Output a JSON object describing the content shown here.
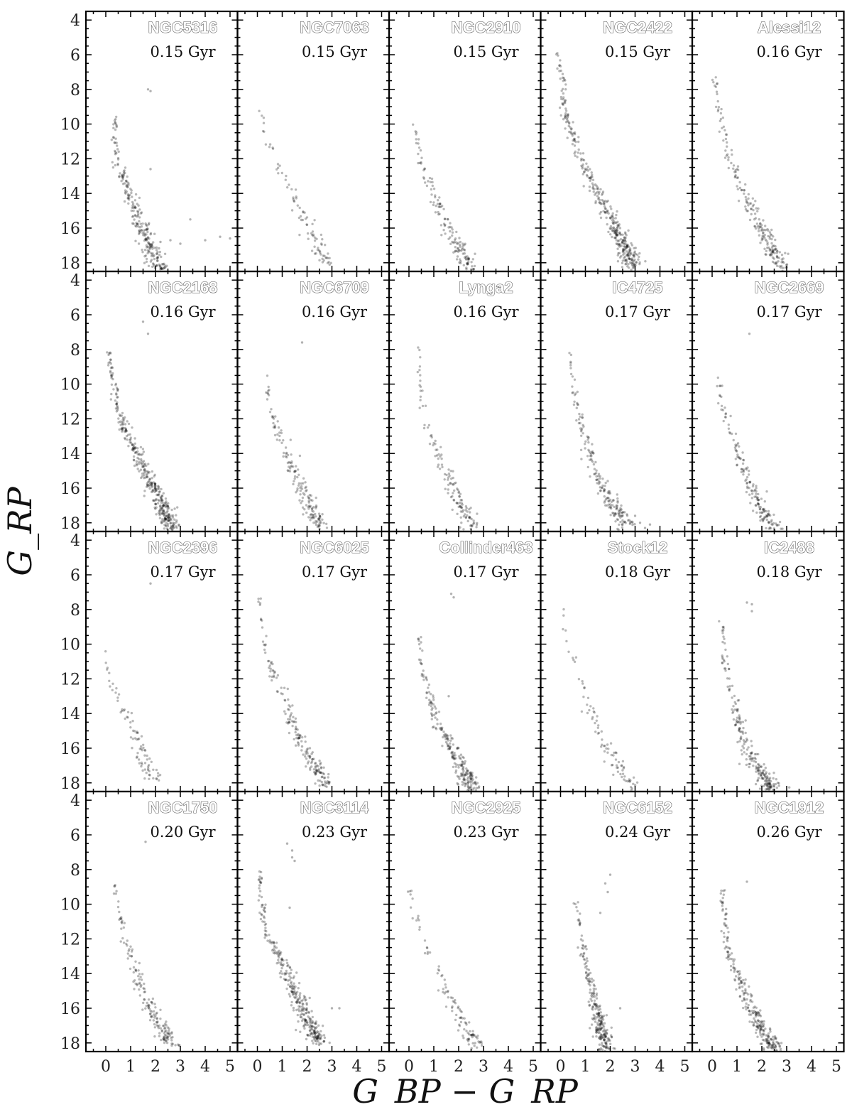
{
  "chart_data": {
    "type": "scatter",
    "layout": "small-multiples 4x5 color-magnitude diagrams",
    "xlabel": "G_BP − G_RP",
    "ylabel": "G_RP",
    "xlim": [
      -0.8,
      5.3
    ],
    "ylim": [
      18.5,
      3.5
    ],
    "y_inverted": true,
    "xticks": [
      0,
      1,
      2,
      3,
      4,
      5
    ],
    "yticks": [
      4,
      6,
      8,
      10,
      12,
      14,
      16,
      18
    ],
    "grid": false,
    "legend": "none",
    "point_color": "#000000",
    "panels": [
      {
        "name": "NGC5316",
        "age": "0.15 Gyr",
        "density": 1.1,
        "track": [
          [
            0.4,
            9.6
          ],
          [
            0.35,
            10.6
          ],
          [
            0.45,
            12.0
          ],
          [
            0.7,
            13.2
          ],
          [
            1.0,
            14.3
          ],
          [
            1.4,
            15.8
          ],
          [
            1.8,
            17.1
          ],
          [
            2.2,
            18.4
          ]
        ],
        "extra": [
          [
            1.7,
            8.0
          ],
          [
            1.8,
            8.1
          ],
          [
            1.8,
            12.6
          ],
          [
            2.6,
            16.7
          ],
          [
            3.0,
            16.9
          ],
          [
            3.4,
            15.5
          ],
          [
            4.0,
            16.7
          ],
          [
            4.6,
            16.5
          ],
          [
            5.0,
            16.6
          ],
          [
            2.2,
            16.8
          ]
        ]
      },
      {
        "name": "NGC7063",
        "age": "0.15 Gyr",
        "density": 0.45,
        "track": [
          [
            0.05,
            8.9
          ],
          [
            0.3,
            10.5
          ],
          [
            0.8,
            12.2
          ],
          [
            1.3,
            13.8
          ],
          [
            1.9,
            15.3
          ],
          [
            2.4,
            16.8
          ],
          [
            2.8,
            18.2
          ]
        ],
        "extra": []
      },
      {
        "name": "NGC2910",
        "age": "0.15 Gyr",
        "density": 0.75,
        "track": [
          [
            0.2,
            9.8
          ],
          [
            0.35,
            11.5
          ],
          [
            0.7,
            13.0
          ],
          [
            1.1,
            14.3
          ],
          [
            1.5,
            15.8
          ],
          [
            2.0,
            17.2
          ],
          [
            2.5,
            18.4
          ]
        ],
        "extra": []
      },
      {
        "name": "NGC2422",
        "age": "0.15 Gyr",
        "density": 1.4,
        "track": [
          [
            -0.15,
            5.8
          ],
          [
            0.1,
            7.5
          ],
          [
            0.1,
            8.9
          ],
          [
            0.4,
            10.3
          ],
          [
            0.9,
            12.3
          ],
          [
            1.5,
            14.2
          ],
          [
            2.2,
            15.9
          ],
          [
            2.6,
            17.0
          ],
          [
            2.9,
            18.2
          ]
        ],
        "extra": []
      },
      {
        "name": "Alessi12",
        "age": "0.16 Gyr",
        "density": 0.9,
        "track": [
          [
            0.05,
            7.1
          ],
          [
            0.25,
            8.6
          ],
          [
            0.45,
            10.4
          ],
          [
            0.8,
            12.3
          ],
          [
            1.3,
            14.2
          ],
          [
            1.9,
            15.8
          ],
          [
            2.4,
            17.1
          ],
          [
            2.8,
            18.3
          ]
        ],
        "extra": []
      },
      {
        "name": "NGC2168",
        "age": "0.16 Gyr",
        "density": 2.0,
        "track": [
          [
            0.1,
            8.0
          ],
          [
            0.25,
            9.6
          ],
          [
            0.5,
            11.6
          ],
          [
            1.0,
            13.3
          ],
          [
            1.6,
            15.0
          ],
          [
            2.2,
            16.8
          ],
          [
            2.7,
            18.3
          ]
        ],
        "extra": [
          [
            1.5,
            6.4
          ],
          [
            1.7,
            7.1
          ]
        ]
      },
      {
        "name": "NGC6709",
        "age": "0.16 Gyr",
        "density": 0.85,
        "track": [
          [
            0.4,
            9.3
          ],
          [
            0.45,
            11.0
          ],
          [
            0.8,
            12.6
          ],
          [
            1.2,
            14.1
          ],
          [
            1.6,
            15.5
          ],
          [
            2.1,
            17.0
          ],
          [
            2.5,
            18.3
          ]
        ],
        "extra": [
          [
            1.8,
            7.6
          ]
        ]
      },
      {
        "name": "Lynga2",
        "age": "0.16 Gyr",
        "density": 0.7,
        "track": [
          [
            0.4,
            7.4
          ],
          [
            0.4,
            9.6
          ],
          [
            0.6,
            12.0
          ],
          [
            1.1,
            13.8
          ],
          [
            1.6,
            15.5
          ],
          [
            2.1,
            17.0
          ],
          [
            2.6,
            18.3
          ]
        ],
        "extra": []
      },
      {
        "name": "IC4725",
        "age": "0.17 Gyr",
        "density": 1.0,
        "track": [
          [
            0.4,
            8.3
          ],
          [
            0.5,
            10.2
          ],
          [
            0.8,
            12.0
          ],
          [
            1.1,
            13.8
          ],
          [
            1.5,
            15.5
          ],
          [
            2.1,
            17.0
          ],
          [
            2.7,
            18.2
          ]
        ],
        "extra": [
          [
            3.2,
            18.0
          ],
          [
            3.4,
            18.3
          ],
          [
            3.0,
            17.6
          ],
          [
            3.6,
            18.1
          ]
        ]
      },
      {
        "name": "NGC2669",
        "age": "0.17 Gyr",
        "density": 0.85,
        "track": [
          [
            0.2,
            9.3
          ],
          [
            0.35,
            11.0
          ],
          [
            0.7,
            12.5
          ],
          [
            1.1,
            14.2
          ],
          [
            1.5,
            15.8
          ],
          [
            2.0,
            17.2
          ],
          [
            2.5,
            18.3
          ]
        ],
        "extra": [
          [
            1.5,
            7.1
          ]
        ]
      },
      {
        "name": "NGC2396",
        "age": "0.17 Gyr",
        "density": 0.55,
        "track": [
          [
            -0.05,
            10.2
          ],
          [
            0.2,
            12.2
          ],
          [
            0.7,
            13.5
          ],
          [
            1.1,
            15.0
          ],
          [
            1.5,
            16.5
          ],
          [
            2.0,
            17.8
          ]
        ],
        "extra": [
          [
            1.8,
            6.5
          ]
        ]
      },
      {
        "name": "NGC6025",
        "age": "0.17 Gyr",
        "density": 0.95,
        "track": [
          [
            0.05,
            7.3
          ],
          [
            0.3,
            9.8
          ],
          [
            0.6,
            11.5
          ],
          [
            1.1,
            13.3
          ],
          [
            1.6,
            15.2
          ],
          [
            2.2,
            16.8
          ],
          [
            2.8,
            18.2
          ]
        ],
        "extra": [
          [
            1.8,
            15.9
          ]
        ]
      },
      {
        "name": "Collinder463",
        "age": "0.17 Gyr",
        "density": 1.2,
        "track": [
          [
            0.4,
            9.5
          ],
          [
            0.5,
            11.2
          ],
          [
            0.8,
            13.0
          ],
          [
            1.2,
            14.6
          ],
          [
            1.7,
            16.0
          ],
          [
            2.2,
            17.4
          ],
          [
            2.6,
            18.4
          ]
        ],
        "extra": [
          [
            1.7,
            7.1
          ],
          [
            1.8,
            7.3
          ],
          [
            1.6,
            13.0
          ]
        ]
      },
      {
        "name": "Stock12",
        "age": "0.18 Gyr",
        "density": 0.45,
        "track": [
          [
            0.05,
            8.0
          ],
          [
            0.3,
            10.0
          ],
          [
            0.8,
            12.0
          ],
          [
            1.2,
            13.8
          ],
          [
            1.7,
            15.6
          ],
          [
            2.3,
            17.0
          ],
          [
            2.9,
            18.3
          ]
        ],
        "extra": []
      },
      {
        "name": "IC2488",
        "age": "0.18 Gyr",
        "density": 1.2,
        "track": [
          [
            0.4,
            8.7
          ],
          [
            0.5,
            10.6
          ],
          [
            0.7,
            12.4
          ],
          [
            1.0,
            14.3
          ],
          [
            1.4,
            16.0
          ],
          [
            2.0,
            17.5
          ],
          [
            2.5,
            18.4
          ]
        ],
        "extra": [
          [
            1.4,
            7.6
          ],
          [
            1.6,
            7.7
          ],
          [
            1.6,
            8.1
          ]
        ]
      },
      {
        "name": "NGC1750",
        "age": "0.20 Gyr",
        "density": 0.9,
        "track": [
          [
            0.4,
            8.7
          ],
          [
            0.55,
            10.6
          ],
          [
            0.8,
            12.2
          ],
          [
            1.2,
            13.9
          ],
          [
            1.7,
            15.6
          ],
          [
            2.2,
            17.0
          ],
          [
            2.7,
            18.3
          ]
        ],
        "extra": [
          [
            1.6,
            6.4
          ]
        ]
      },
      {
        "name": "NGC3114",
        "age": "0.23 Gyr",
        "density": 1.7,
        "track": [
          [
            0.1,
            8.2
          ],
          [
            0.15,
            10.0
          ],
          [
            0.4,
            11.8
          ],
          [
            1.0,
            13.3
          ],
          [
            1.5,
            15.0
          ],
          [
            2.0,
            16.6
          ],
          [
            2.5,
            18.0
          ]
        ],
        "extra": [
          [
            1.2,
            6.5
          ],
          [
            1.4,
            6.9
          ],
          [
            1.4,
            7.3
          ],
          [
            1.5,
            7.5
          ],
          [
            1.3,
            10.2
          ],
          [
            3.0,
            16.0
          ],
          [
            3.3,
            16.0
          ]
        ]
      },
      {
        "name": "NGC2925",
        "age": "0.23 Gyr",
        "density": 0.55,
        "track": [
          [
            -0.05,
            8.5
          ],
          [
            0.2,
            10.5
          ],
          [
            0.7,
            12.3
          ],
          [
            1.3,
            14.3
          ],
          [
            1.8,
            15.9
          ],
          [
            2.3,
            17.3
          ],
          [
            2.8,
            18.3
          ]
        ],
        "extra": []
      },
      {
        "name": "NGC6152",
        "age": "0.24 Gyr",
        "density": 1.6,
        "track": [
          [
            0.6,
            9.7
          ],
          [
            0.9,
            12.2
          ],
          [
            1.1,
            14.0
          ],
          [
            1.4,
            15.7
          ],
          [
            1.6,
            17.0
          ],
          [
            1.8,
            18.4
          ]
        ],
        "extra": [
          [
            1.8,
            8.8
          ],
          [
            2.0,
            8.3
          ],
          [
            1.9,
            9.3
          ],
          [
            1.6,
            10.5
          ],
          [
            0.9,
            13.0
          ],
          [
            0.7,
            12.5
          ],
          [
            2.4,
            16.0
          ]
        ]
      },
      {
        "name": "NGC1912",
        "age": "0.26 Gyr",
        "density": 1.4,
        "track": [
          [
            0.4,
            9.1
          ],
          [
            0.45,
            10.4
          ],
          [
            0.6,
            12.5
          ],
          [
            1.0,
            14.1
          ],
          [
            1.5,
            15.8
          ],
          [
            2.0,
            17.2
          ],
          [
            2.5,
            18.4
          ]
        ],
        "extra": [
          [
            1.4,
            8.7
          ]
        ]
      }
    ]
  }
}
